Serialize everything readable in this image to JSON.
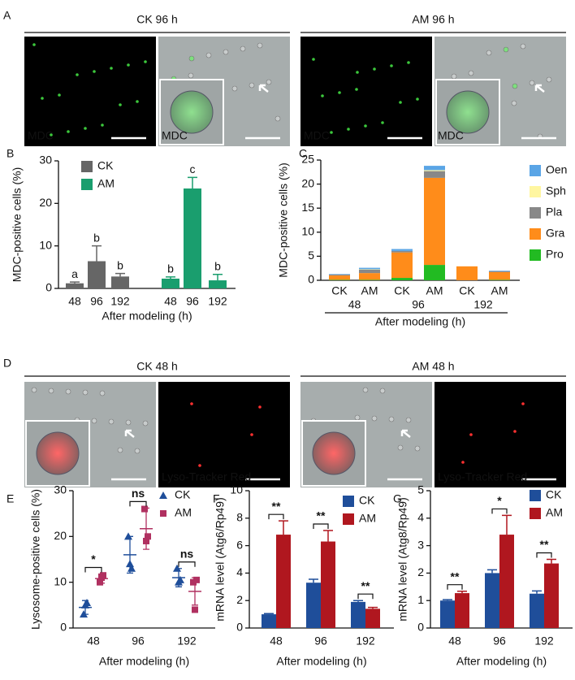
{
  "micrographs": [
    {
      "panel": "A",
      "groups": [
        {
          "header": "CK 96 h",
          "image_labels": [
            "MDC",
            "MDC"
          ]
        },
        {
          "header": "AM 96 h",
          "image_labels": [
            "MDC",
            "MDC"
          ]
        }
      ]
    },
    {
      "panel": "D",
      "groups": [
        {
          "header": "CK 48 h",
          "image_labels": [
            "Lyso-Tracker Red"
          ]
        },
        {
          "header": "AM 48 h",
          "image_labels": [
            "Lyso-Tracker Red"
          ]
        }
      ]
    }
  ],
  "chart_data": [
    {
      "type": "bar",
      "panel": "B",
      "ylabel": "MDC-positive cells (%)",
      "xlabel": "After modeling (h)",
      "categories": [
        "48",
        "96",
        "192",
        "48",
        "96",
        "192"
      ],
      "series": [
        {
          "name": "CK",
          "color": "#666666",
          "values": [
            1.2,
            6.4,
            2.8,
            null,
            null,
            null
          ],
          "errors": [
            0.3,
            3.6,
            0.7,
            null,
            null,
            null
          ]
        },
        {
          "name": "AM",
          "color": "#1a9e6e",
          "values": [
            null,
            null,
            null,
            2.3,
            23.5,
            1.9
          ],
          "errors": [
            null,
            null,
            null,
            0.4,
            2.6,
            1.4
          ]
        }
      ],
      "annotations": [
        "a",
        "b",
        "b",
        "b",
        "c",
        "b"
      ],
      "ylim": [
        0,
        30
      ],
      "yticks": [
        0,
        10,
        20,
        30
      ]
    },
    {
      "type": "stacked-bar",
      "panel": "C",
      "ylabel": "MDC-positive cells (%)",
      "xlabel": "After modeling (h)",
      "categories": [
        "CK",
        "AM",
        "CK",
        "AM",
        "CK",
        "AM"
      ],
      "groups": [
        "48",
        "96",
        "192"
      ],
      "series": [
        {
          "name": "Pro",
          "color": "#22bb22",
          "values": [
            0.1,
            0.1,
            0.5,
            3.2,
            0,
            0.1
          ]
        },
        {
          "name": "Gra",
          "color": "#ff8c1a",
          "values": [
            0.9,
            1.4,
            5.3,
            18.1,
            2.9,
            1.6
          ]
        },
        {
          "name": "Pla",
          "color": "#888888",
          "values": [
            0.2,
            0.7,
            0.3,
            1.4,
            0,
            0.2
          ]
        },
        {
          "name": "Sph",
          "color": "#fff6a0",
          "values": [
            0,
            0.1,
            0,
            0.2,
            0,
            0
          ]
        },
        {
          "name": "Oen",
          "color": "#5aa5e6",
          "values": [
            0.1,
            0.3,
            0.4,
            0.9,
            0,
            0.1
          ]
        }
      ],
      "ylim": [
        0,
        25
      ],
      "yticks": [
        0,
        5,
        10,
        15,
        20,
        25
      ]
    },
    {
      "type": "dot",
      "panel": "E",
      "ylabel": "Lysosome-positive cells (%)",
      "xlabel": "After modeling (h)",
      "categories": [
        "48",
        "96",
        "192"
      ],
      "series": [
        {
          "name": "CK",
          "color": "#1f4e9a",
          "marker": "triangle",
          "points": [
            [
              3,
              5,
              5.5
            ],
            [
              20,
              14,
              13
            ],
            [
              13,
              10,
              10.5
            ]
          ],
          "mean": [
            4.5,
            16,
            11
          ],
          "sd": [
            1.5,
            4,
            2
          ]
        },
        {
          "name": "AM",
          "color": "#b03060",
          "marker": "square",
          "points": [
            [
              10,
              11,
              11.5
            ],
            [
              26,
              19,
              20
            ],
            [
              10,
              4,
              10.5
            ]
          ],
          "mean": [
            10.8,
            21.7,
            8
          ],
          "sd": [
            1,
            4.5,
            3
          ]
        }
      ],
      "annotations": [
        "*",
        "ns",
        "ns"
      ],
      "ylim": [
        0,
        30
      ],
      "yticks": [
        0,
        10,
        20,
        30
      ]
    },
    {
      "type": "bar",
      "panel": "F",
      "ylabel": "mRNA level (Atg6/Rp49)",
      "xlabel": "After modeling (h)",
      "categories": [
        "48",
        "96",
        "192"
      ],
      "series": [
        {
          "name": "CK",
          "color": "#1f4e9a",
          "values": [
            1.0,
            3.3,
            1.9
          ],
          "errors": [
            0.05,
            0.25,
            0.1
          ]
        },
        {
          "name": "AM",
          "color": "#b0171f",
          "values": [
            6.8,
            6.3,
            1.4
          ],
          "errors": [
            1.0,
            0.8,
            0.1
          ]
        }
      ],
      "annotations": [
        "**",
        "**",
        "**"
      ],
      "ylim": [
        0,
        10
      ],
      "yticks": [
        0,
        2,
        4,
        6,
        8,
        10
      ]
    },
    {
      "type": "bar",
      "panel": "G",
      "ylabel": "mRNA level (Atg8/Rp49)",
      "xlabel": "After modeling (h)",
      "categories": [
        "48",
        "96",
        "192"
      ],
      "series": [
        {
          "name": "CK",
          "color": "#1f4e9a",
          "values": [
            1.0,
            2.0,
            1.25
          ],
          "errors": [
            0.03,
            0.12,
            0.1
          ]
        },
        {
          "name": "AM",
          "color": "#b0171f",
          "values": [
            1.27,
            3.4,
            2.35
          ],
          "errors": [
            0.07,
            0.7,
            0.15
          ]
        }
      ],
      "annotations": [
        "**",
        "*",
        "**"
      ],
      "ylim": [
        0,
        5
      ],
      "yticks": [
        0,
        1,
        2,
        3,
        4,
        5
      ]
    }
  ]
}
